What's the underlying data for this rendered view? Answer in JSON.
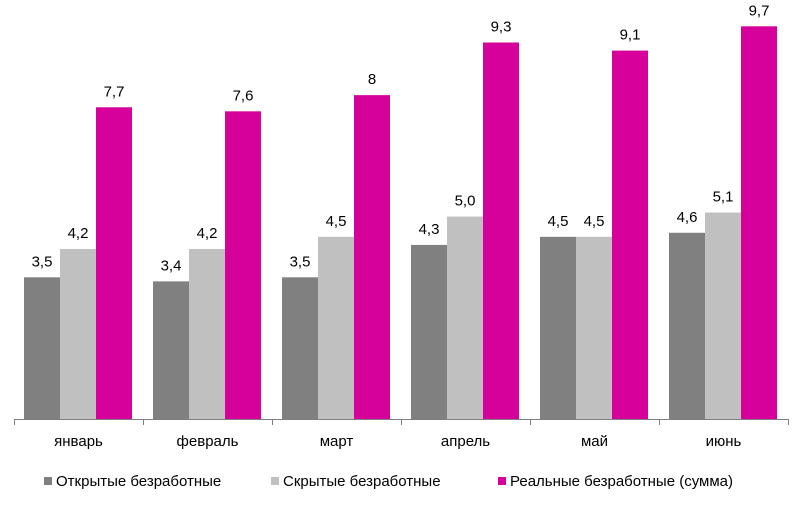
{
  "chart_data": {
    "type": "bar",
    "title": "",
    "xlabel": "",
    "ylabel": "",
    "ylim": [
      0,
      10.35
    ],
    "grid": false,
    "legend_position": "bottom",
    "categories": [
      "январь",
      "февраль",
      "март",
      "апрель",
      "май",
      "июнь"
    ],
    "series": [
      {
        "name": "Открытые безработные",
        "color": "#808080",
        "values": [
          3.5,
          3.4,
          3.5,
          4.3,
          4.5,
          4.6
        ],
        "labels": [
          "3,5",
          "3,4",
          "3,5",
          "4,3",
          "4,5",
          "4,6"
        ]
      },
      {
        "name": "Скрытые безработные",
        "color": "#c0c0c0",
        "values": [
          4.2,
          4.2,
          4.5,
          5.0,
          4.5,
          5.1
        ],
        "labels": [
          "4,2",
          "4,2",
          "4,5",
          "5,0",
          "4,5",
          "5,1"
        ]
      },
      {
        "name": "Реальные безработные (сумма)",
        "color": "#d6009a",
        "values": [
          7.7,
          7.6,
          8,
          9.3,
          9.1,
          9.7
        ],
        "labels": [
          "7,7",
          "7,6",
          "8",
          "9,3",
          "9,1",
          "9,7"
        ]
      }
    ]
  }
}
